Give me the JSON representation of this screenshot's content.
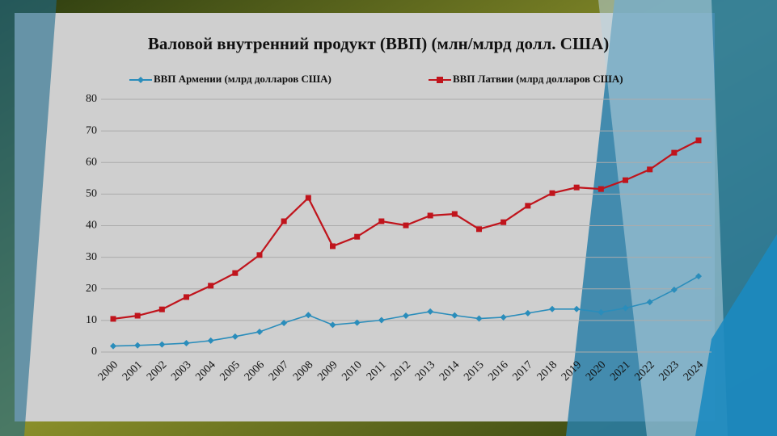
{
  "chart_data": {
    "type": "line",
    "title": "Валовой внутренний продукт (ВВП) (млн/млрд долл. США)",
    "categories": [
      "2000",
      "2001",
      "2002",
      "2003",
      "2004",
      "2005",
      "2006",
      "2007",
      "2008",
      "2009",
      "2010",
      "2011",
      "2012",
      "2013",
      "2014",
      "2015",
      "2016",
      "2017",
      "2018",
      "2019",
      "2020",
      "2021",
      "2022",
      "2023",
      "2024"
    ],
    "series": [
      {
        "name": "ВВП Армении (млрд долларов США)",
        "color": "#2a8dbb",
        "marker": "diamond",
        "values": [
          1.9,
          2.1,
          2.4,
          2.8,
          3.6,
          4.9,
          6.4,
          9.2,
          11.7,
          8.6,
          9.3,
          10.1,
          11.5,
          12.8,
          11.6,
          10.6,
          11.0,
          12.3,
          13.6,
          13.6,
          12.6,
          13.9,
          15.8,
          19.7,
          24.0
        ]
      },
      {
        "name": "ВВП Латвии (млрд долларов США)",
        "color": "#c0141c",
        "marker": "square",
        "values": [
          10.5,
          11.5,
          13.5,
          17.4,
          21.0,
          25.0,
          30.7,
          41.4,
          48.8,
          33.5,
          36.5,
          41.4,
          40.1,
          43.2,
          43.7,
          38.9,
          41.1,
          46.3,
          50.3,
          52.1,
          51.6,
          54.4,
          57.8,
          63.1,
          67.0
        ]
      }
    ],
    "ylim": [
      0,
      80
    ],
    "yticks": [
      0,
      10,
      20,
      30,
      40,
      50,
      60,
      70,
      80
    ],
    "grid": true
  }
}
